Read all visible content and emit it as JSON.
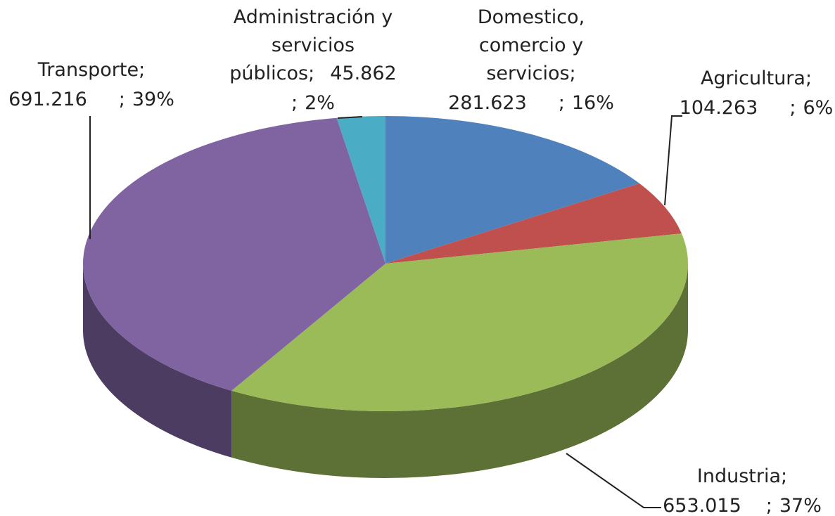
{
  "chart_data": {
    "type": "pie3d",
    "categories": [
      "Domestico, comercio y servicios",
      "Agricultura",
      "Industria",
      "Transporte",
      "Administración y servicios públicos"
    ],
    "values": [
      281.623,
      104.263,
      653.015,
      691.216,
      45.862
    ],
    "percent_labels": [
      "16%",
      "6%",
      "37%",
      "39%",
      "2%"
    ],
    "separator": ";",
    "colors": [
      "#4f81bd",
      "#c0504d",
      "#9bbb59",
      "#8064a2",
      "#4bacc6"
    ]
  }
}
